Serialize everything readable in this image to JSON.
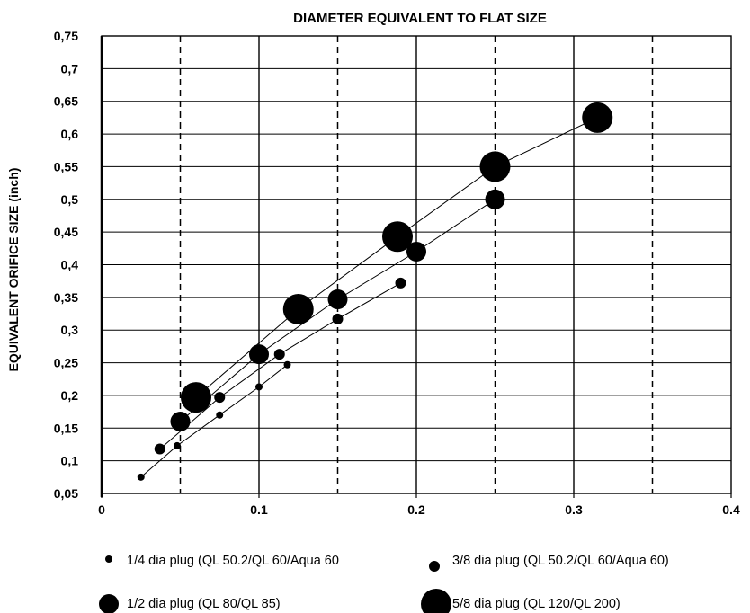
{
  "chart_data": {
    "type": "scatter",
    "title": "DIAMETER EQUIVALENT TO FLAT SIZE",
    "xlabel": "",
    "ylabel": "EQUIVALENT ORIFICE SIZE (inch)",
    "xlim": [
      0,
      0.4
    ],
    "ylim": [
      0.05,
      0.75
    ],
    "x_ticks": [
      {
        "value": 0,
        "label": "0"
      },
      {
        "value": 0.1,
        "label": "0.1"
      },
      {
        "value": 0.2,
        "label": "0.2"
      },
      {
        "value": 0.3,
        "label": "0.3"
      },
      {
        "value": 0.4,
        "label": "0.4"
      }
    ],
    "y_ticks": [
      {
        "value": 0.05,
        "label": "0,05"
      },
      {
        "value": 0.1,
        "label": "0,1"
      },
      {
        "value": 0.15,
        "label": "0,15"
      },
      {
        "value": 0.2,
        "label": "0,2"
      },
      {
        "value": 0.25,
        "label": "0,25"
      },
      {
        "value": 0.3,
        "label": "0,3"
      },
      {
        "value": 0.35,
        "label": "0,35"
      },
      {
        "value": 0.4,
        "label": "0,4"
      },
      {
        "value": 0.45,
        "label": "0,45"
      },
      {
        "value": 0.5,
        "label": "0,5"
      },
      {
        "value": 0.55,
        "label": "0,55"
      },
      {
        "value": 0.6,
        "label": "0,6"
      },
      {
        "value": 0.65,
        "label": "0,65"
      },
      {
        "value": 0.7,
        "label": "0,7"
      },
      {
        "value": 0.75,
        "label": "0,75"
      }
    ],
    "grid_solid_x": [
      0.1,
      0.2,
      0.3
    ],
    "grid_dashed_x": [
      0.05,
      0.15,
      0.25,
      0.35
    ],
    "grid_y": true,
    "legend_position": "bottom",
    "series": [
      {
        "name": "1/4 dia plug (QL 50.2/QL 60/Aqua 60",
        "marker_size": "small",
        "connected": true,
        "points": [
          [
            0.025,
            0.075
          ],
          [
            0.048,
            0.123
          ],
          [
            0.075,
            0.17
          ],
          [
            0.1,
            0.213
          ],
          [
            0.118,
            0.247
          ]
        ]
      },
      {
        "name": "3/8 dia plug (QL 50.2/QL 60/Aqua 60)",
        "marker_size": "medium",
        "connected": true,
        "points": [
          [
            0.037,
            0.118
          ],
          [
            0.075,
            0.197
          ],
          [
            0.113,
            0.263
          ],
          [
            0.15,
            0.317
          ],
          [
            0.19,
            0.372
          ]
        ]
      },
      {
        "name": "1/2 dia plug (QL 80/QL 85)",
        "marker_size": "large",
        "connected": true,
        "points": [
          [
            0.05,
            0.16
          ],
          [
            0.1,
            0.263
          ],
          [
            0.15,
            0.347
          ],
          [
            0.2,
            0.42
          ],
          [
            0.25,
            0.5
          ]
        ]
      },
      {
        "name": "5/8 dia plug (QL 120/QL 200)",
        "marker_size": "xlarge",
        "connected": true,
        "points": [
          [
            0.06,
            0.197
          ],
          [
            0.125,
            0.332
          ],
          [
            0.188,
            0.443
          ],
          [
            0.25,
            0.55
          ],
          [
            0.315,
            0.625
          ]
        ]
      }
    ]
  }
}
